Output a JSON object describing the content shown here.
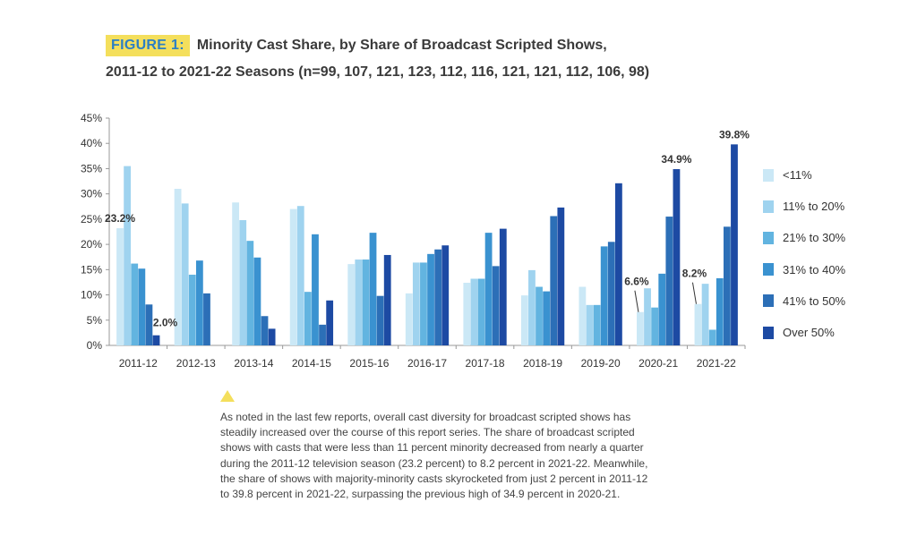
{
  "figure": {
    "label": "FIGURE 1:",
    "title_line1": "Minority Cast Share, by Share of Broadcast Scripted Shows,",
    "title_line2": "2011-12 to 2021-22 Seasons (n=99, 107, 121, 123, 112, 116, 121, 121, 112, 106, 98)"
  },
  "colors": {
    "series": [
      "#cbe8f6",
      "#9fd3ef",
      "#62b4e0",
      "#3a92d0",
      "#2c6fb7",
      "#1d4aa3"
    ],
    "label_yellow": "#f4df5c",
    "label_blue": "#2b7fc4"
  },
  "chart_data": {
    "type": "bar",
    "title": "Minority Cast Share, by Share of Broadcast Scripted Shows, 2011-12 to 2021-22 Seasons",
    "xlabel": "",
    "ylabel": "",
    "ylim": [
      0,
      45
    ],
    "yticks": [
      "0%",
      "5%",
      "10%",
      "15%",
      "20%",
      "25%",
      "30%",
      "35%",
      "40%",
      "45%"
    ],
    "categories": [
      "2011-12",
      "2012-13",
      "2013-14",
      "2014-15",
      "2015-16",
      "2016-17",
      "2017-18",
      "2018-19",
      "2019-20",
      "2020-21",
      "2021-22"
    ],
    "series": [
      {
        "name": "<11%",
        "values": [
          23.2,
          31.0,
          28.3,
          27.0,
          16.1,
          10.3,
          12.4,
          9.9,
          11.6,
          6.6,
          8.2
        ]
      },
      {
        "name": "11% to 20%",
        "values": [
          35.5,
          28.1,
          24.8,
          27.6,
          17.0,
          16.4,
          13.2,
          14.9,
          8.0,
          11.3,
          12.2
        ]
      },
      {
        "name": "21% to 30%",
        "values": [
          16.2,
          14.0,
          20.7,
          10.6,
          17.0,
          16.4,
          13.2,
          11.6,
          8.0,
          7.5,
          3.1
        ]
      },
      {
        "name": "31% to 40%",
        "values": [
          15.2,
          16.8,
          17.4,
          22.0,
          22.3,
          18.1,
          22.3,
          10.7,
          19.6,
          14.2,
          13.3
        ]
      },
      {
        "name": "41% to 50%",
        "values": [
          8.1,
          10.3,
          5.8,
          4.1,
          9.8,
          19.0,
          15.7,
          25.6,
          20.5,
          25.5,
          23.5
        ]
      },
      {
        "name": "Over 50%",
        "values": [
          2.0,
          0,
          3.3,
          8.9,
          17.9,
          19.8,
          23.1,
          27.3,
          32.1,
          34.9,
          39.8
        ]
      }
    ],
    "annotations": [
      {
        "text": "23.2%",
        "category": "2011-12",
        "series": 0
      },
      {
        "text": "2.0%",
        "category": "2011-12",
        "series": 5
      },
      {
        "text": "6.6%",
        "category": "2020-21",
        "series": 0
      },
      {
        "text": "34.9%",
        "category": "2020-21",
        "series": 5
      },
      {
        "text": "8.2%",
        "category": "2021-22",
        "series": 0
      },
      {
        "text": "39.8%",
        "category": "2021-22",
        "series": 5
      }
    ]
  },
  "note": {
    "text": "As noted in the last few reports, overall cast diversity for broadcast scripted shows has steadily increased over the course of this report series. The share of broadcast scripted shows with casts that were less than 11 percent minority decreased from nearly a quarter during the 2011-12 television season (23.2 percent) to 8.2 percent in 2021-22. Meanwhile, the share of shows with majority-minority casts skyrocketed from just 2 percent in 2011-12 to 39.8 percent in 2021-22, surpassing the previous high of 34.9 percent in 2020-21."
  }
}
